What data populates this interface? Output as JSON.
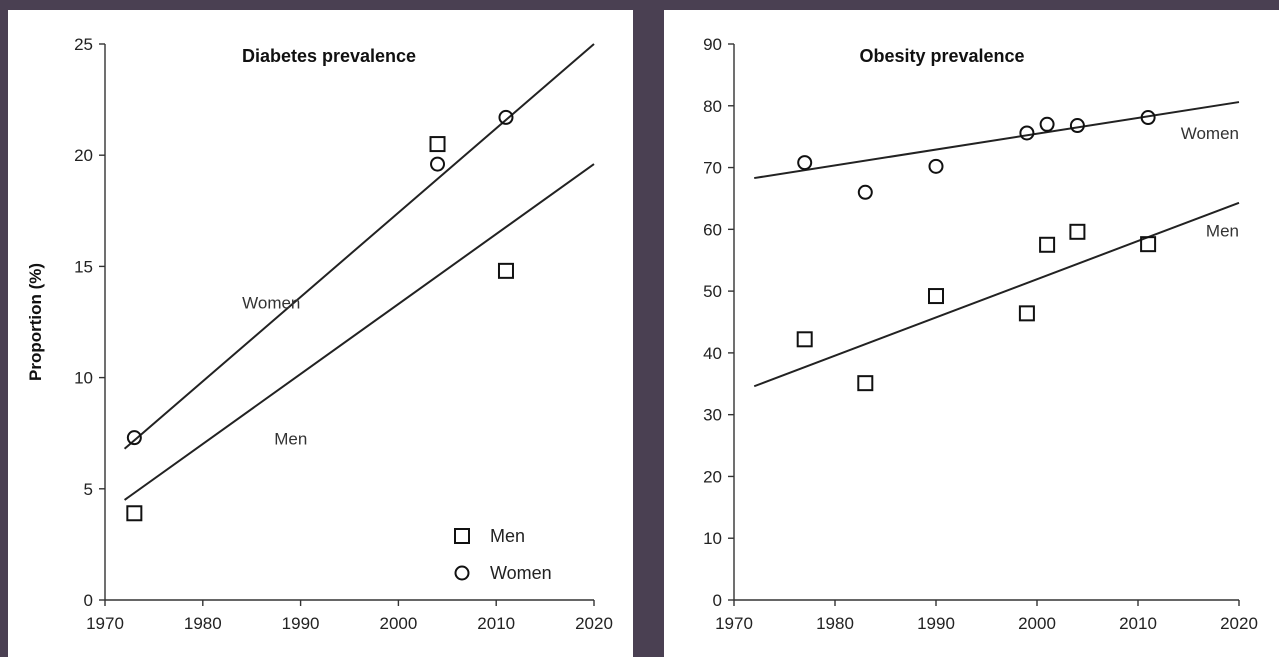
{
  "chart_data": [
    {
      "type": "scatter",
      "title": "Diabetes prevalence",
      "xlabel": "",
      "ylabel": "Proportion (%)",
      "xlim": [
        1970,
        2020
      ],
      "ylim": [
        0,
        25
      ],
      "xticks": [
        1970,
        1980,
        1990,
        2000,
        2010,
        2020
      ],
      "yticks": [
        0,
        5,
        10,
        15,
        20,
        25
      ],
      "grid": false,
      "series": [
        {
          "name": "Men",
          "marker": "square",
          "x": [
            1973,
            2004,
            2011
          ],
          "y": [
            3.9,
            20.5,
            14.8
          ]
        },
        {
          "name": "Women",
          "marker": "circle",
          "x": [
            1973,
            2004,
            2011
          ],
          "y": [
            7.3,
            19.6,
            21.7
          ]
        }
      ],
      "trendlines": [
        {
          "label": "Women",
          "x": [
            1972,
            2020
          ],
          "y": [
            6.8,
            25.0
          ]
        },
        {
          "label": "Men",
          "x": [
            1972,
            2020
          ],
          "y": [
            4.5,
            19.6
          ]
        }
      ],
      "annotations": [
        {
          "text": "Women",
          "x": 1987,
          "y": 13.1
        },
        {
          "text": "Men",
          "x": 1989,
          "y": 7.0
        }
      ],
      "legend": {
        "placement": "bottom-right",
        "entries": [
          {
            "label": "Men",
            "marker": "square"
          },
          {
            "label": "Women",
            "marker": "circle"
          }
        ]
      }
    },
    {
      "type": "scatter",
      "title": "Obesity prevalence",
      "xlabel": "",
      "ylabel": "",
      "xlim": [
        1970,
        2020
      ],
      "ylim": [
        0,
        90
      ],
      "xticks": [
        1970,
        1980,
        1990,
        2000,
        2010,
        2020
      ],
      "yticks": [
        0,
        10,
        20,
        30,
        40,
        50,
        60,
        70,
        80,
        90
      ],
      "grid": false,
      "series": [
        {
          "name": "Women",
          "marker": "circle",
          "x": [
            1977,
            1983,
            1990,
            1999,
            2001,
            2004,
            2011
          ],
          "y": [
            70.8,
            66.0,
            70.2,
            75.6,
            77.0,
            76.8,
            78.1
          ]
        },
        {
          "name": "Men",
          "marker": "square",
          "x": [
            1977,
            1983,
            1990,
            1999,
            2001,
            2004,
            2011
          ],
          "y": [
            42.2,
            35.1,
            49.2,
            46.4,
            57.5,
            59.6,
            57.6
          ]
        }
      ],
      "trendlines": [
        {
          "label": "Women",
          "x": [
            1972,
            2020
          ],
          "y": [
            68.3,
            80.6
          ]
        },
        {
          "label": "Men",
          "x": [
            1972,
            2020
          ],
          "y": [
            34.6,
            64.3
          ]
        }
      ],
      "annotations": [
        {
          "text": "Women",
          "x": 2020,
          "y": 74.6
        },
        {
          "text": "Men",
          "x": 2020,
          "y": 58.8
        }
      ]
    }
  ]
}
